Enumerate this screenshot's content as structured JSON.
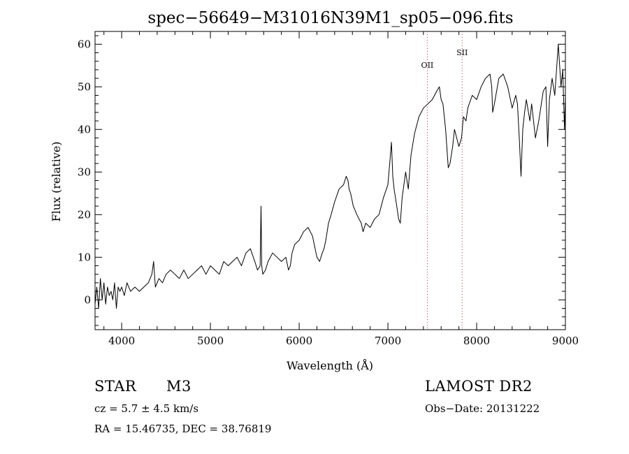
{
  "chart_data": {
    "type": "line",
    "title": "spec−56649−M31016N39M1_sp05−096.fits",
    "xlabel": "Wavelength (Å)",
    "ylabel": "Flux (relative)",
    "xlim": [
      3700,
      9000
    ],
    "ylim": [
      -7,
      63
    ],
    "xticks": [
      4000,
      5000,
      6000,
      7000,
      8000,
      9000
    ],
    "yticks": [
      0,
      10,
      20,
      30,
      40,
      50,
      60
    ],
    "grid": false,
    "series": [
      {
        "x": [
          3700,
          3720,
          3740,
          3760,
          3780,
          3800,
          3820,
          3840,
          3860,
          3880,
          3900,
          3920,
          3940,
          3960,
          3980,
          4000,
          4030,
          4060,
          4100,
          4150,
          4200,
          4250,
          4300,
          4340,
          4360,
          4380,
          4420,
          4460,
          4500,
          4550,
          4600,
          4650,
          4700,
          4750,
          4800,
          4850,
          4900,
          4950,
          5000,
          5050,
          5100,
          5150,
          5200,
          5250,
          5300,
          5350,
          5400,
          5450,
          5500,
          5530,
          5560,
          5570,
          5578,
          5590,
          5620,
          5650,
          5700,
          5750,
          5800,
          5850,
          5880,
          5900,
          5920,
          5950,
          6000,
          6050,
          6100,
          6150,
          6170,
          6200,
          6230,
          6260,
          6280,
          6300,
          6330,
          6360,
          6400,
          6450,
          6500,
          6530,
          6550,
          6563,
          6580,
          6610,
          6650,
          6700,
          6720,
          6750,
          6800,
          6850,
          6900,
          6950,
          7000,
          7020,
          7040,
          7055,
          7070,
          7100,
          7120,
          7140,
          7160,
          7180,
          7200,
          7230,
          7260,
          7300,
          7350,
          7400,
          7450,
          7500,
          7550,
          7580,
          7600,
          7620,
          7650,
          7680,
          7700,
          7730,
          7750,
          7800,
          7830,
          7850,
          7880,
          7900,
          7950,
          8000,
          8050,
          8100,
          8150,
          8170,
          8180,
          8200,
          8250,
          8300,
          8350,
          8400,
          8440,
          8460,
          8480,
          8500,
          8520,
          8540,
          8560,
          8600,
          8620,
          8662,
          8700,
          8750,
          8780,
          8800,
          8820,
          8850,
          8880,
          8900,
          8920,
          8950,
          8970,
          8990,
          9000
        ],
        "y": [
          -1,
          3,
          -2,
          5,
          0,
          4,
          -1,
          3,
          1,
          2,
          0,
          4,
          -2,
          3,
          2,
          3,
          1,
          4,
          2,
          3,
          2,
          3,
          4,
          6,
          9,
          3,
          5,
          4,
          6,
          7,
          6,
          5,
          7,
          5,
          6,
          7,
          8,
          6,
          8,
          7,
          6,
          9,
          8,
          9,
          10,
          8,
          11,
          12,
          9,
          7,
          8,
          22,
          8,
          6,
          7,
          9,
          11,
          10,
          9,
          10,
          7,
          8,
          11,
          13,
          14,
          16,
          17,
          15,
          13,
          10,
          9,
          11,
          12,
          14,
          18,
          20,
          23,
          26,
          27,
          29,
          28,
          26,
          25,
          22,
          20,
          18,
          16,
          18,
          17,
          19,
          20,
          24,
          27,
          32,
          37,
          29,
          26,
          22,
          19,
          18,
          24,
          27,
          30,
          26,
          34,
          39,
          43,
          45,
          46,
          47,
          49,
          50,
          47,
          46,
          40,
          31,
          32,
          36,
          40,
          36,
          38,
          43,
          42,
          45,
          48,
          47,
          50,
          52,
          53,
          50,
          44,
          46,
          52,
          53,
          50,
          45,
          48,
          46,
          38,
          29,
          40,
          44,
          47,
          42,
          46,
          38,
          42,
          49,
          50,
          36,
          47,
          52,
          48,
          54,
          60,
          50,
          54,
          40,
          48
        ]
      }
    ],
    "annotations": [
      {
        "label": "OII",
        "x": 7444
      },
      {
        "label": "SII",
        "x": 7836
      }
    ]
  },
  "info": {
    "object_label": "STAR",
    "subclass": "M3",
    "survey": "LAMOST DR2",
    "cz": "cz = 5.7 ± 4.5 km/s",
    "obs_date": "Obs−Date: 20131222",
    "coords": "RA =  15.46735, DEC =  38.76819"
  }
}
